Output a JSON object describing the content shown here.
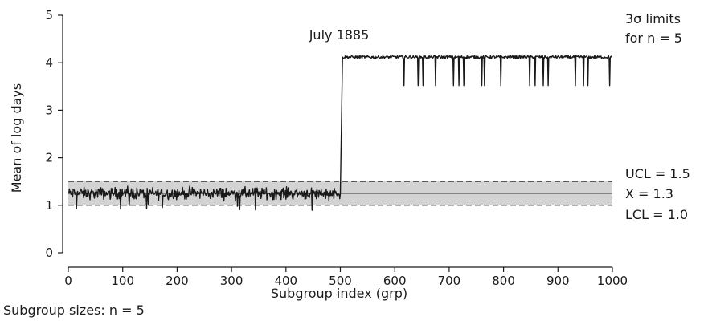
{
  "chart_data": {
    "type": "line",
    "xlabel": "Subgroup index (grp)",
    "ylabel": "Mean of log days",
    "xlim": [
      0,
      1000
    ],
    "ylim": [
      0,
      5
    ],
    "xticks": [
      0,
      100,
      200,
      300,
      400,
      500,
      600,
      700,
      800,
      900,
      1000
    ],
    "yticks": [
      0,
      1,
      2,
      3,
      4,
      5
    ],
    "center_line": 1.25,
    "ucl": 1.5,
    "lcl": 1.0,
    "shift_x": 500,
    "after_shift_level": 4.12,
    "dip_level": 3.52,
    "dips_x": [
      617,
      643,
      652,
      675,
      708,
      718,
      727,
      760,
      765,
      795,
      848,
      858,
      873,
      882,
      932,
      947,
      955,
      995
    ],
    "series": [
      {
        "values_before_shift": {
          "mean": 1.25,
          "range": [
            0.88,
            1.4
          ]
        },
        "values_after_shift": {
          "mean": 4.12,
          "range": [
            3.52,
            4.16
          ]
        }
      }
    ],
    "grid": false,
    "colors": {
      "line": "#1a1a1a",
      "band": "#d3d3d3",
      "limit": "#333333"
    }
  },
  "annotations": {
    "event": "July 1885",
    "limits_title": "3σ limits",
    "limits_n": "for n = 5",
    "ucl": "UCL = 1.5",
    "center": "X = 1.3",
    "lcl": "LCL = 1.0",
    "subgroup_sizes": "Subgroup sizes: n = 5"
  }
}
